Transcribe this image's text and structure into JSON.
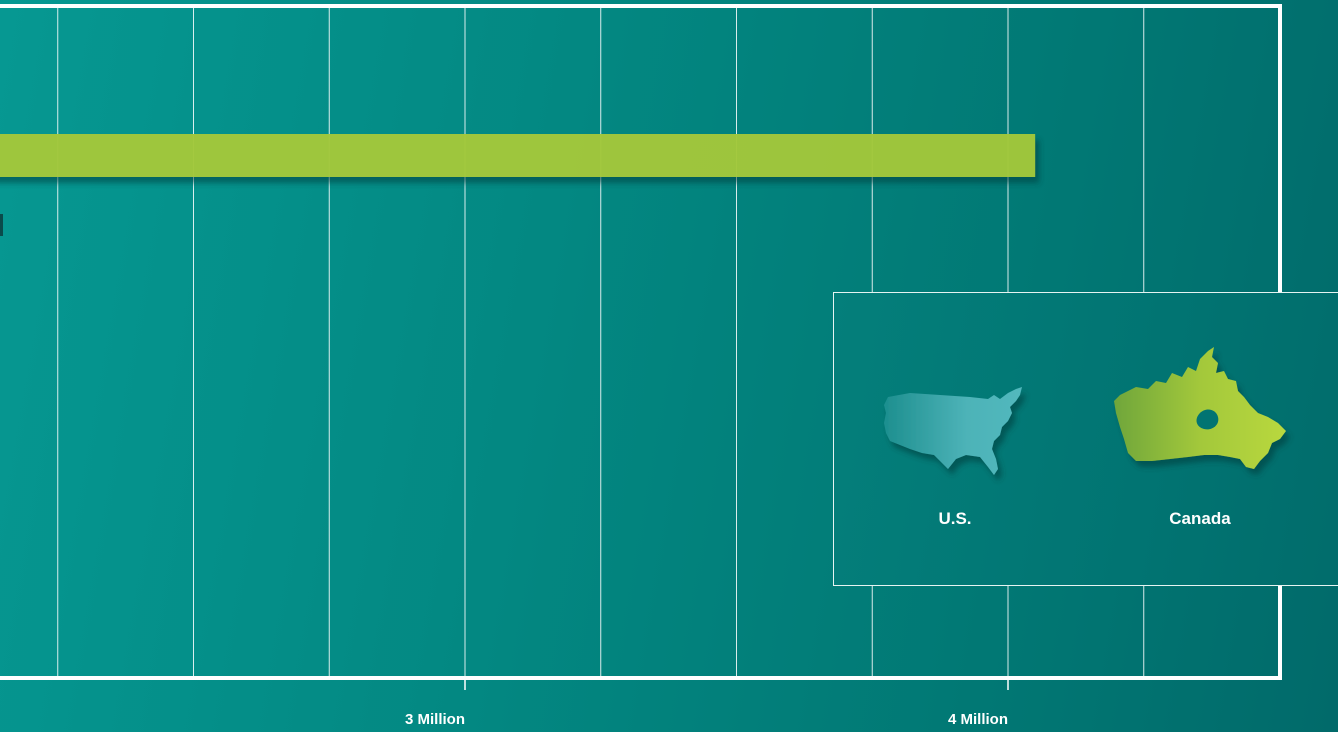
{
  "chart_data": {
    "type": "bar",
    "orientation": "horizontal",
    "x_ticks": [
      {
        "value": 3000000,
        "label": "3 Million"
      },
      {
        "value": 4000000,
        "label": "4 Million"
      }
    ],
    "bars": [
      {
        "series": "Canada",
        "value": 4050000,
        "color": "#a3c83a"
      }
    ],
    "grid": true
  },
  "legend": {
    "placement": "right",
    "items": [
      {
        "name": "U.S.",
        "icon": "us-map-icon",
        "color": "#3aa9ad"
      },
      {
        "name": "Canada",
        "icon": "canada-map-icon",
        "color": "#a3c83a"
      }
    ]
  },
  "colors": {
    "background": "#038882",
    "bar": "#a3c83a",
    "grid": "#ffffff"
  }
}
